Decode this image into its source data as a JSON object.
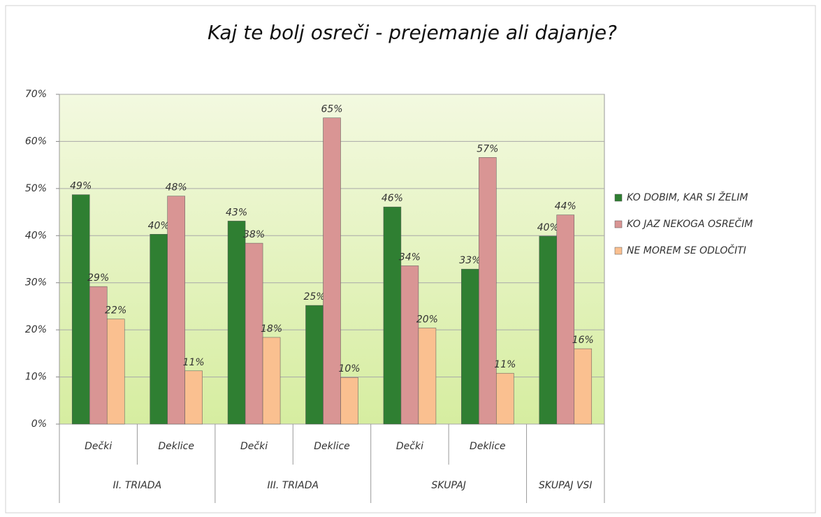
{
  "chart_data": {
    "type": "bar",
    "title": "Kaj te bolj osreči - prejemanje ali dajanje?",
    "categories": [
      "Dečki",
      "Deklice",
      "Dečki",
      "Deklice",
      "Dečki",
      "Deklice",
      null
    ],
    "category_groups": [
      "II. TRIADA",
      "II. TRIADA",
      "III. TRIADA",
      "III. TRIADA",
      "SKUPAJ",
      "SKUPAJ",
      "SKUPAJ VSI"
    ],
    "series": [
      {
        "name": "KO DOBIM, KAR SI ŽELIM",
        "color": "#2f7f32",
        "values": [
          48.7,
          40.3,
          43.1,
          25.2,
          46.1,
          32.9,
          39.9
        ],
        "value_labels": [
          "49%",
          "40%",
          "43%",
          "25%",
          "46%",
          "33%",
          "40%"
        ]
      },
      {
        "name": "KO JAZ NEKOGA OSREČIM",
        "color": "#d99594",
        "values": [
          29.2,
          48.4,
          38.4,
          65,
          33.6,
          56.6,
          44.4
        ],
        "value_labels": [
          "29%",
          "48%",
          "38%",
          "65%",
          "34%",
          "57%",
          "44%"
        ]
      },
      {
        "name": "NE MOREM SE ODLOČITI",
        "color": "#fac090",
        "values": [
          22.3,
          11.3,
          18.4,
          9.9,
          20.4,
          10.8,
          16
        ],
        "value_labels": [
          "22%",
          "11%",
          "18%",
          "10%",
          "20%",
          "11%",
          "16%"
        ]
      }
    ],
    "ylim": [
      0,
      70
    ],
    "yticks": [
      {
        "value": 0,
        "label": "0%"
      },
      {
        "value": 10,
        "label": "10%"
      },
      {
        "value": 20,
        "label": "20%"
      },
      {
        "value": 30,
        "label": "30%"
      },
      {
        "value": 40,
        "label": "40%"
      },
      {
        "value": 50,
        "label": "50%"
      },
      {
        "value": 60,
        "label": "60%"
      },
      {
        "value": 70,
        "label": "70%"
      }
    ],
    "grid": true,
    "legend": "right"
  }
}
